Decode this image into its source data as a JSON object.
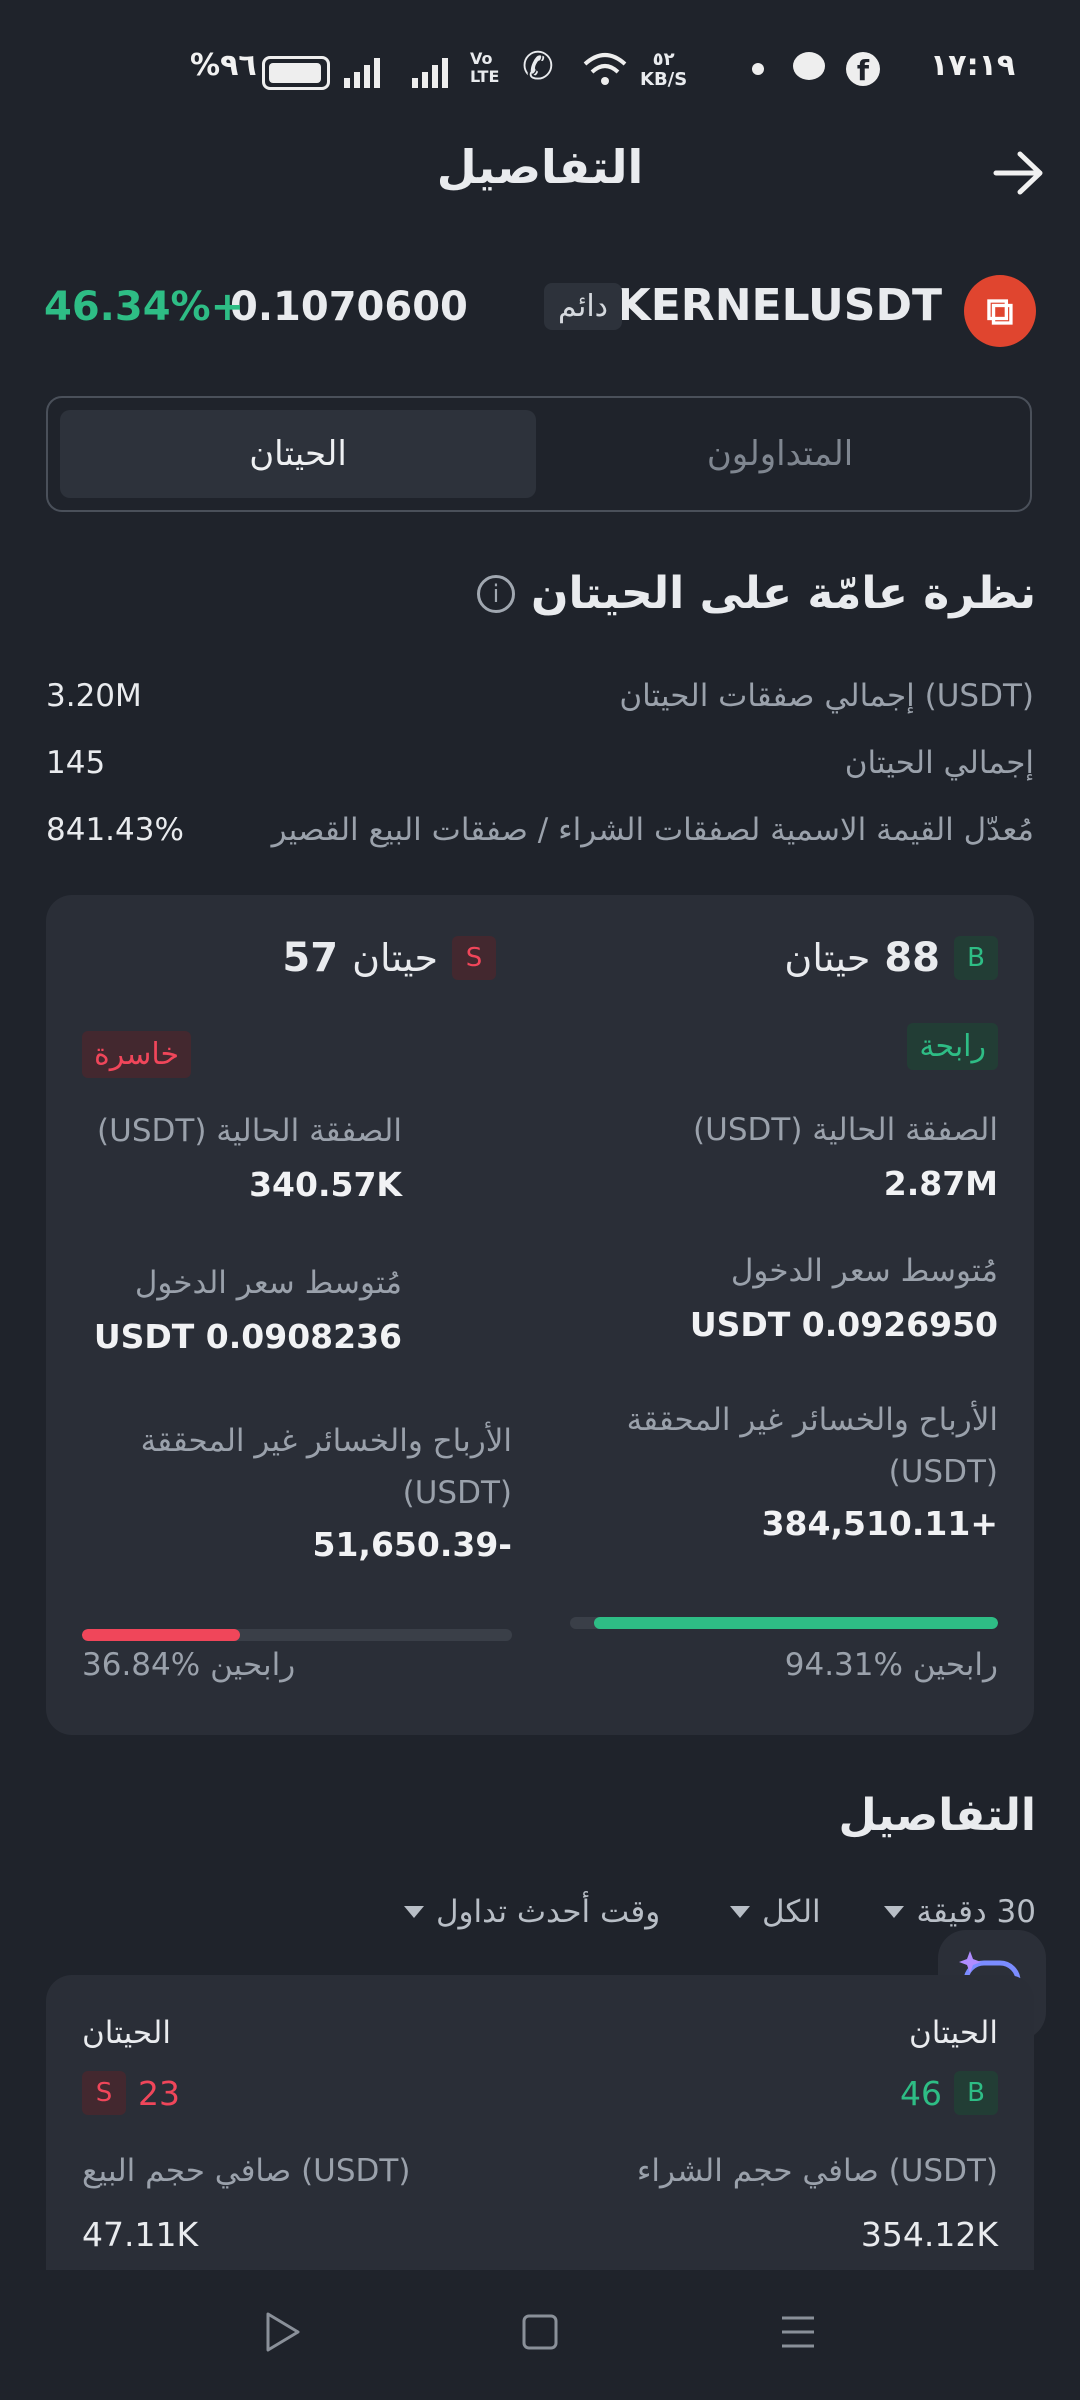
{
  "status_bar": {
    "time": "١٧:١٩",
    "battery": "%٩٦",
    "net_speed_value": "٥٢",
    "net_speed_unit": "KB/S",
    "volte": "Vo LTE"
  },
  "header": {
    "title": "التفاصيل"
  },
  "ticker": {
    "symbol": "KERNELUSDT",
    "type_tag": "دائم",
    "price": "0.1070600",
    "change": "46.34%+",
    "logo_colour": "#e0452f"
  },
  "tabs": {
    "traders": "المتداولون",
    "whales": "الحيتان",
    "active": "whales"
  },
  "overview": {
    "title": "نظرة عامّة على الحيتان",
    "rows": [
      {
        "label": "إجمالي صفقات الحيتان (USDT)",
        "value": "3.20M"
      },
      {
        "label": "إجمالي الحيتان",
        "value": "145"
      },
      {
        "label": "مُعدّل القيمة الاسمية لصفقات الشراء / صفقات البيع القصير",
        "value": "841.43%"
      }
    ]
  },
  "long": {
    "badge": "B",
    "count": "88",
    "unit": "حيتان",
    "status": "رابحة",
    "position_label": "الصفقة الحالية (USDT)",
    "position_value": "2.87M",
    "entry_label": "مُتوسط سعر الدخول",
    "entry_value": "USDT 0.0926950",
    "pnl_label": "الأرباح والخسائر غير المحققة (USDT)",
    "pnl_value": "384,510.11+",
    "winrate_text": "94.31% رابحين",
    "winrate": 0.9431
  },
  "short": {
    "badge": "S",
    "count": "57",
    "unit": "حيتان",
    "status": "خاسرة",
    "position_label": "الصفقة الحالية (USDT)",
    "position_value": "340.57K",
    "entry_label": "مُتوسط سعر الدخول",
    "entry_value": "USDT 0.0908236",
    "pnl_label": "الأرباح والخسائر غير المحققة (USDT)",
    "pnl_value": "51,650.39-",
    "winrate_text": "36.84% رابحين",
    "winrate": 0.3684
  },
  "details": {
    "title": "التفاصيل",
    "filters": {
      "interval": "30 دقيقة",
      "side": "الكل",
      "sort": "وقت أحدث تداول"
    },
    "buy": {
      "label": "الحيتان",
      "badge": "B",
      "count": "46",
      "vol_label": "صافي حجم الشراء (USDT)",
      "vol_value": "354.12K"
    },
    "sell": {
      "label": "الحيتان",
      "badge": "S",
      "count": "23",
      "vol_label": "صافي حجم البيع (USDT)",
      "vol_value": "47.11K"
    }
  },
  "colors": {
    "up": "#2ebd85",
    "down": "#f0465a",
    "bg": "#1f232b",
    "card": "#2a2e37"
  }
}
